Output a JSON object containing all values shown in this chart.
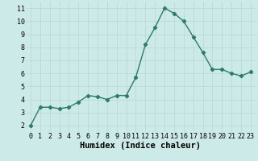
{
  "x": [
    0,
    1,
    2,
    3,
    4,
    5,
    6,
    7,
    8,
    9,
    10,
    11,
    12,
    13,
    14,
    15,
    16,
    17,
    18,
    19,
    20,
    21,
    22,
    23
  ],
  "y": [
    2.0,
    3.4,
    3.4,
    3.3,
    3.4,
    3.8,
    4.3,
    4.2,
    4.0,
    4.3,
    4.3,
    5.7,
    8.2,
    9.5,
    11.0,
    10.6,
    10.0,
    8.8,
    7.6,
    6.3,
    6.3,
    6.0,
    5.8,
    6.1
  ],
  "line_color": "#2d7b6d",
  "marker": "D",
  "marker_size": 2.2,
  "bg_color": "#cceae8",
  "grid_color": "#b8d8d4",
  "xlabel": "Humidex (Indice chaleur)",
  "xlim": [
    -0.5,
    23.5
  ],
  "ylim": [
    1.5,
    11.5
  ],
  "yticks": [
    2,
    3,
    4,
    5,
    6,
    7,
    8,
    9,
    10,
    11
  ],
  "xticks": [
    0,
    1,
    2,
    3,
    4,
    5,
    6,
    7,
    8,
    9,
    10,
    11,
    12,
    13,
    14,
    15,
    16,
    17,
    18,
    19,
    20,
    21,
    22,
    23
  ],
  "tick_fontsize": 6.0,
  "xlabel_fontsize": 7.5,
  "line_width": 1.0
}
